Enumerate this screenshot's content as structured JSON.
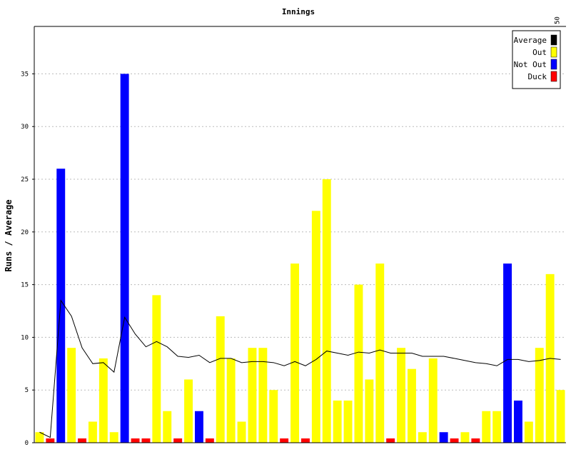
{
  "chart_data": {
    "type": "bar",
    "title": "Innings",
    "xlabel": "",
    "ylabel": "Runs / Average",
    "ylim": [
      0,
      39.5
    ],
    "yticks": [
      0,
      5,
      10,
      15,
      20,
      25,
      30,
      35
    ],
    "xtick_labels": [
      "50"
    ],
    "grid": true,
    "legend_position": "top-right",
    "legend": [
      {
        "name": "Average",
        "color": "#000000"
      },
      {
        "name": "Out",
        "color": "#ffff00"
      },
      {
        "name": "Not Out",
        "color": "#0000ff"
      },
      {
        "name": "Duck",
        "color": "#ff0000"
      }
    ],
    "innings": [
      {
        "runs": 1,
        "status": "Out"
      },
      {
        "runs": 0,
        "status": "Duck"
      },
      {
        "runs": 26,
        "status": "Not Out"
      },
      {
        "runs": 9,
        "status": "Out"
      },
      {
        "runs": 0,
        "status": "Duck"
      },
      {
        "runs": 2,
        "status": "Out"
      },
      {
        "runs": 8,
        "status": "Out"
      },
      {
        "runs": 1,
        "status": "Out"
      },
      {
        "runs": 35,
        "status": "Not Out"
      },
      {
        "runs": 0,
        "status": "Duck"
      },
      {
        "runs": 0,
        "status": "Duck"
      },
      {
        "runs": 14,
        "status": "Out"
      },
      {
        "runs": 3,
        "status": "Out"
      },
      {
        "runs": 0,
        "status": "Duck"
      },
      {
        "runs": 6,
        "status": "Out"
      },
      {
        "runs": 3,
        "status": "Not Out"
      },
      {
        "runs": 0,
        "status": "Duck"
      },
      {
        "runs": 12,
        "status": "Out"
      },
      {
        "runs": 8,
        "status": "Out"
      },
      {
        "runs": 2,
        "status": "Out"
      },
      {
        "runs": 9,
        "status": "Out"
      },
      {
        "runs": 9,
        "status": "Out"
      },
      {
        "runs": 5,
        "status": "Out"
      },
      {
        "runs": 0,
        "status": "Duck"
      },
      {
        "runs": 17,
        "status": "Out"
      },
      {
        "runs": 0,
        "status": "Duck"
      },
      {
        "runs": 22,
        "status": "Out"
      },
      {
        "runs": 25,
        "status": "Out"
      },
      {
        "runs": 4,
        "status": "Out"
      },
      {
        "runs": 4,
        "status": "Out"
      },
      {
        "runs": 15,
        "status": "Out"
      },
      {
        "runs": 6,
        "status": "Out"
      },
      {
        "runs": 17,
        "status": "Out"
      },
      {
        "runs": 0,
        "status": "Duck"
      },
      {
        "runs": 9,
        "status": "Out"
      },
      {
        "runs": 7,
        "status": "Out"
      },
      {
        "runs": 1,
        "status": "Out"
      },
      {
        "runs": 8,
        "status": "Out"
      },
      {
        "runs": 1,
        "status": "Not Out"
      },
      {
        "runs": 0,
        "status": "Duck"
      },
      {
        "runs": 1,
        "status": "Out"
      },
      {
        "runs": 0,
        "status": "Duck"
      },
      {
        "runs": 3,
        "status": "Out"
      },
      {
        "runs": 3,
        "status": "Out"
      },
      {
        "runs": 17,
        "status": "Not Out"
      },
      {
        "runs": 4,
        "status": "Not Out"
      },
      {
        "runs": 2,
        "status": "Out"
      },
      {
        "runs": 9,
        "status": "Out"
      },
      {
        "runs": 16,
        "status": "Out"
      },
      {
        "runs": 5,
        "status": "Out"
      }
    ],
    "average": [
      1.0,
      0.5,
      13.5,
      12.0,
      9.0,
      7.5,
      7.6,
      6.7,
      11.9,
      10.3,
      9.1,
      9.6,
      9.1,
      8.2,
      8.1,
      8.3,
      7.6,
      8.0,
      8.0,
      7.6,
      7.7,
      7.7,
      7.6,
      7.3,
      7.7,
      7.3,
      7.9,
      8.7,
      8.5,
      8.3,
      8.6,
      8.5,
      8.8,
      8.5,
      8.5,
      8.5,
      8.2,
      8.2,
      8.2,
      8.0,
      7.8,
      7.6,
      7.5,
      7.3,
      7.9,
      7.9,
      7.7,
      7.8,
      8.0,
      7.9
    ]
  }
}
